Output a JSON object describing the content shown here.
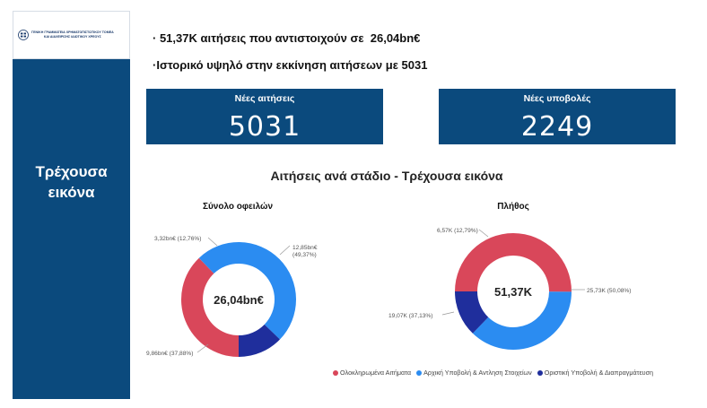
{
  "sidebar": {
    "logo_lines": [
      "ΓΕΝΙΚΗ ΓΡΑΜΜΑΤΕΙΑ ΧΡΗΜΑΤΟΠΙΣΤΩΤΙΚΟΥ ΤΟΜΕΑ",
      "ΚΑΙ ΔΙΑΧΕΙΡΙΣΗΣ ΙΔΙΩΤΙΚΟΥ ΧΡΕΟΥΣ"
    ],
    "title_line1": "Τρέχουσα",
    "title_line2": "εικόνα"
  },
  "highlights": {
    "line1": "· 51,37K αιτήσεις που αντιστοιχούν σε  26,04bn€",
    "line2": "·Ιστορικό υψηλό στην εκκίνηση αιτήσεων με 5031"
  },
  "kpis": [
    {
      "label": "Νέες αιτήσεις",
      "value": "5031"
    },
    {
      "label": "Νέες υποβολές",
      "value": "2249"
    }
  ],
  "section_title": "Αιτήσεις ανά στάδιο - Τρέχουσα εικόνα",
  "colors": {
    "navy": "#0b4a7d",
    "red": "#d9475a",
    "blue": "#2b8cf1",
    "dark_blue": "#1f2e9c"
  },
  "chart_data": [
    {
      "type": "pie",
      "title": "Σύνολο οφειλών",
      "center_label": "26,04bn€",
      "categories": [
        "Ολοκληρωμένα Αιτήματα",
        "Αρχική Υποβολή & Αντληση Στοιχείων",
        "Οριστική Υποβολή & Διαπραγμάτευση"
      ],
      "values": [
        9.86,
        12.85,
        3.32
      ],
      "percents": [
        37.88,
        49.37,
        12.76
      ],
      "data_labels": [
        "9,86bn€ (37,88%)",
        "12,85bn€\n(49,37%)",
        "3,32bn€ (12,76%)"
      ]
    },
    {
      "type": "pie",
      "title": "Πλήθος",
      "center_label": "51,37K",
      "categories": [
        "Ολοκληρωμένα Αιτήματα",
        "Αρχική Υποβολή & Αντληση Στοιχείων",
        "Οριστική Υποβολή & Διαπραγμάτευση"
      ],
      "values": [
        25.73,
        19.07,
        6.57
      ],
      "percents": [
        50.08,
        37.13,
        12.79
      ],
      "data_labels": [
        "25,73K (50,08%)",
        "19,07K (37,13%)",
        "6,57K (12,79%)"
      ]
    }
  ],
  "legend": {
    "placement": "bottom-right",
    "items": [
      "Ολοκληρωμένα Αιτήματα",
      "Αρχική Υποβολή & Αντληση Στοιχείων",
      "Οριστική Υποβολή & Διαπραγμάτευση"
    ]
  }
}
